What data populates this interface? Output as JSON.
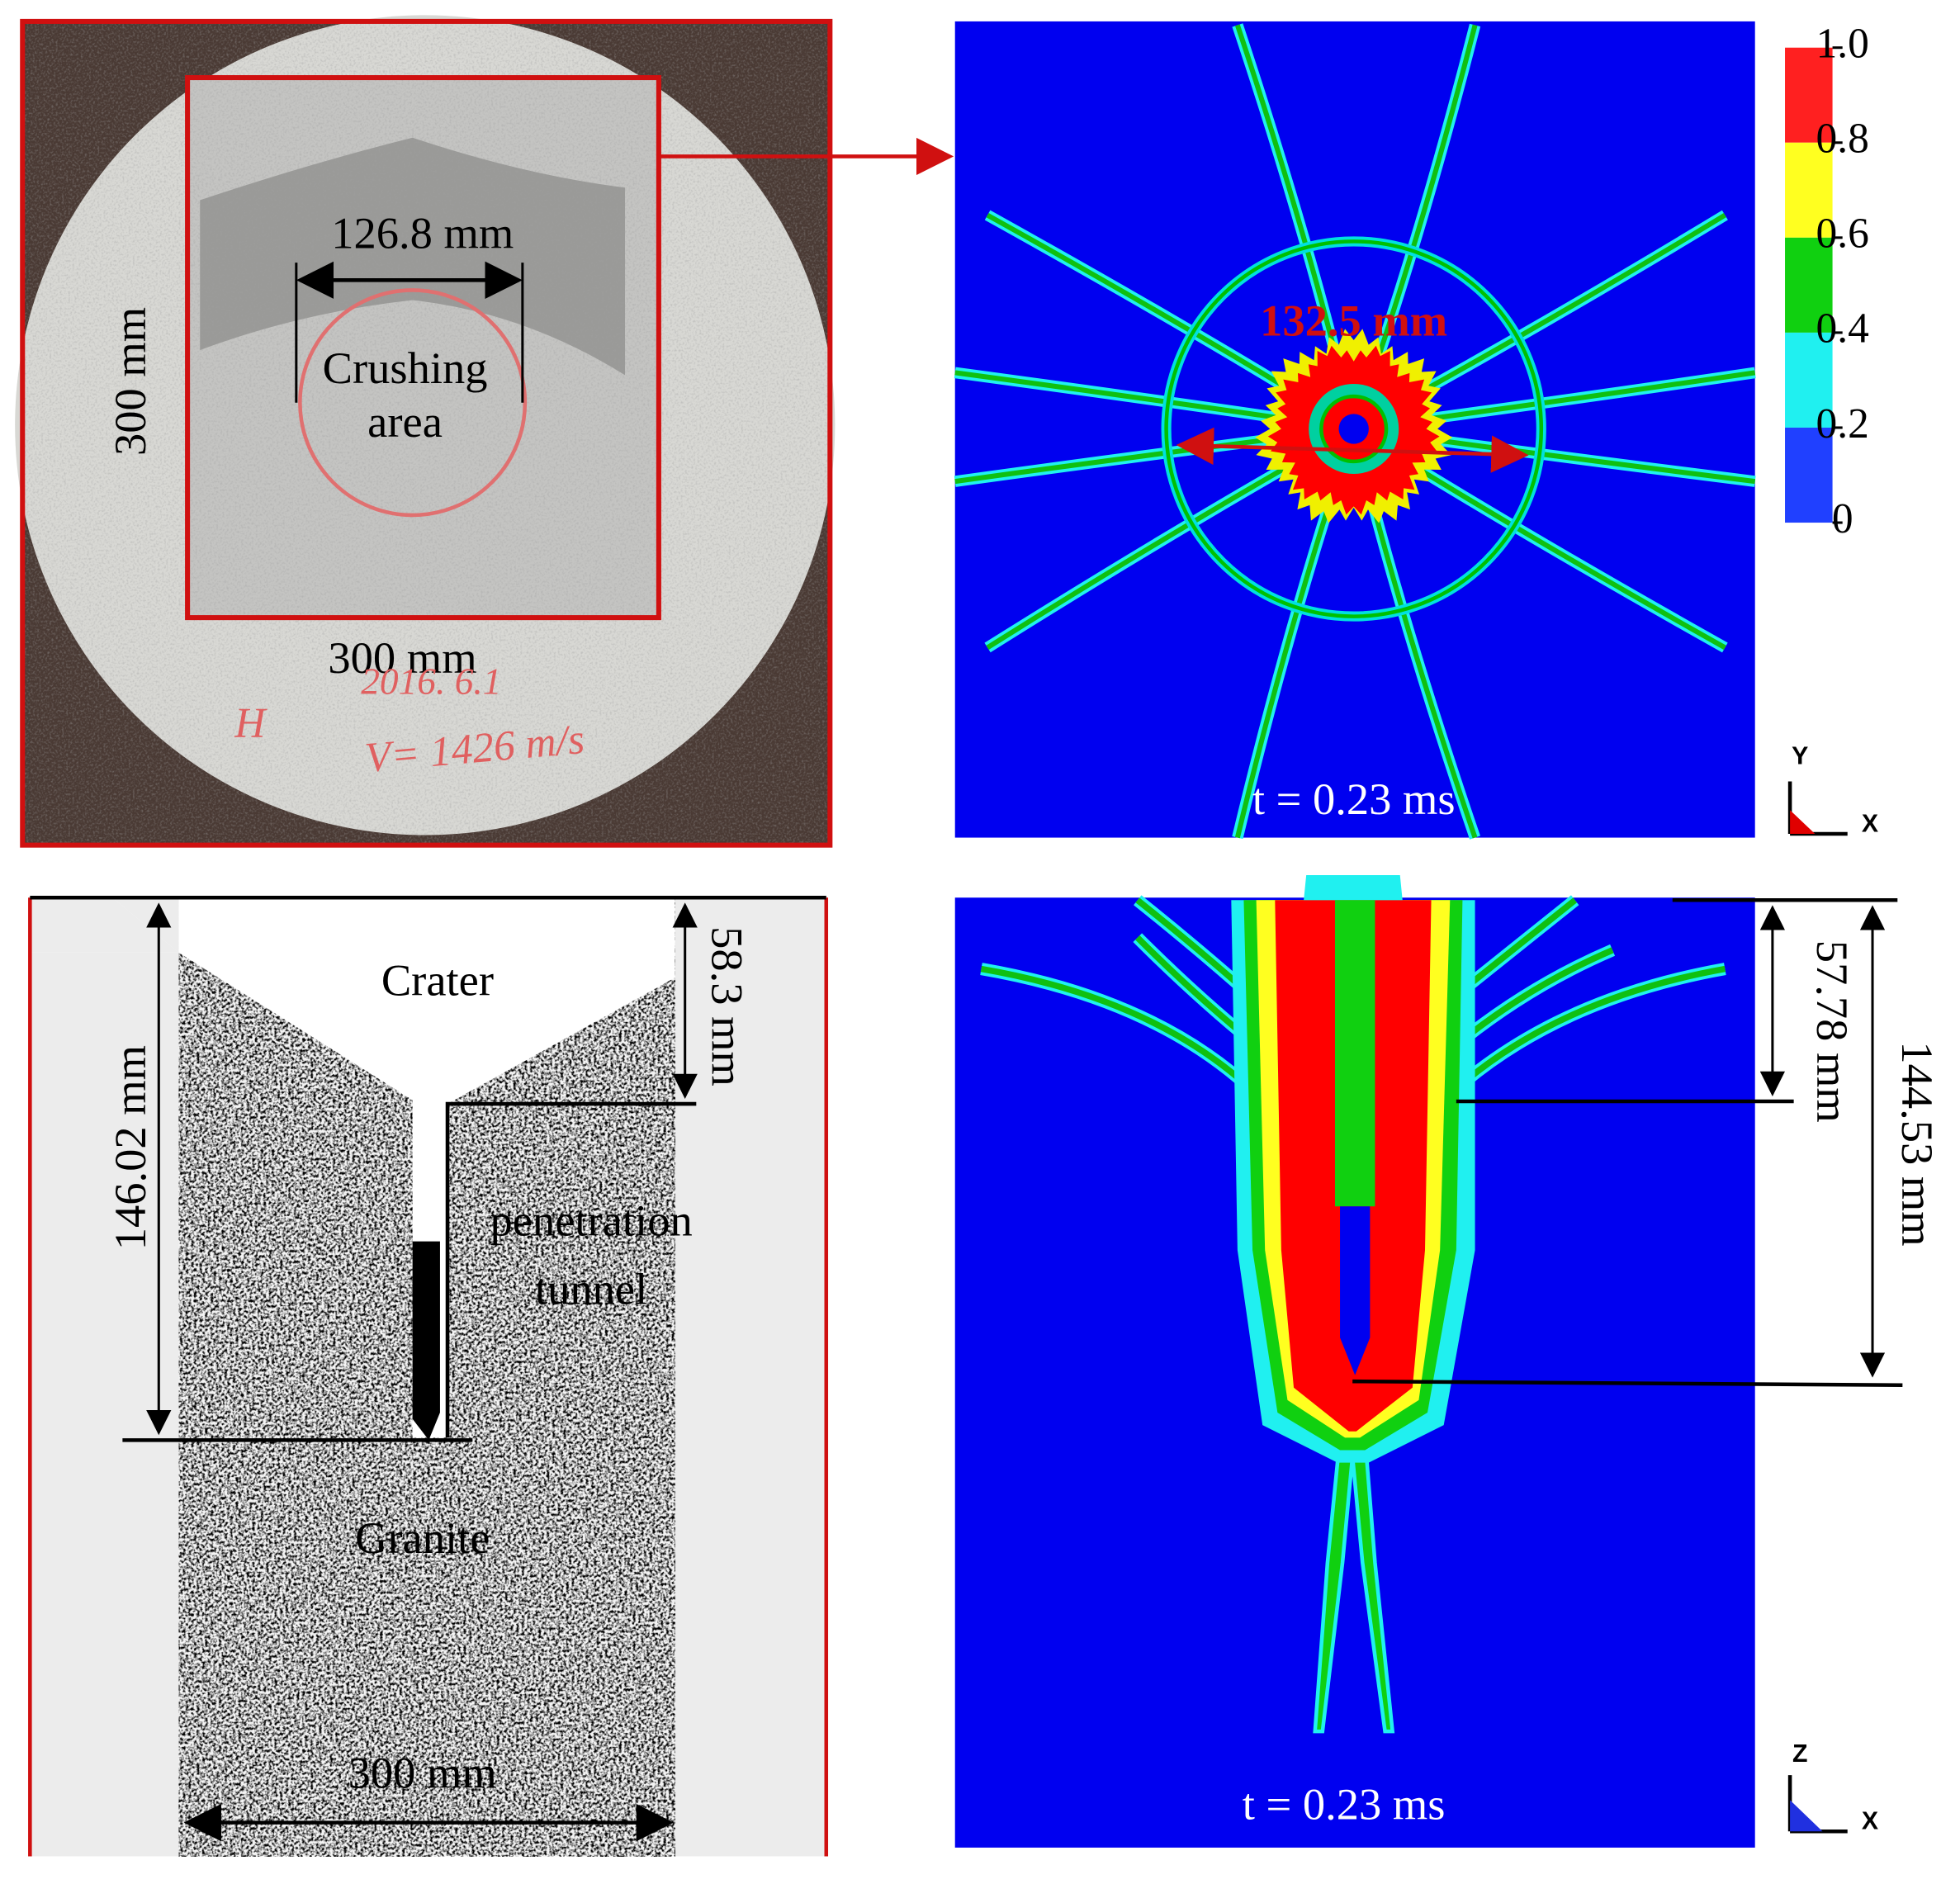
{
  "top_left": {
    "crush_width": "126.8 mm",
    "crush_label": [
      "Crushing",
      "area"
    ],
    "height": "300 mm",
    "width": "300 mm",
    "handwriting": [
      "H",
      "2016. 6.1",
      "V= 1426 m/s"
    ]
  },
  "top_right": {
    "diameter": "132.5 mm",
    "time": "t = 0.23 ms",
    "colorbar": [
      "1.0",
      "0.8",
      "0.6",
      "0.4",
      "0.2",
      "0"
    ],
    "axes": [
      "Y",
      "X"
    ]
  },
  "bottom_left": {
    "crater": "Crater",
    "crater_depth": "58.3 mm",
    "total_depth": "146.02 mm",
    "tunnel_label": [
      "penetration",
      "tunnel"
    ],
    "material": "Granite",
    "width": "300 mm"
  },
  "bottom_right": {
    "crater_depth": "57.78 mm",
    "total_depth": "144.53 mm",
    "time": "t = 0.23 ms",
    "axes": [
      "Z",
      "X"
    ]
  }
}
